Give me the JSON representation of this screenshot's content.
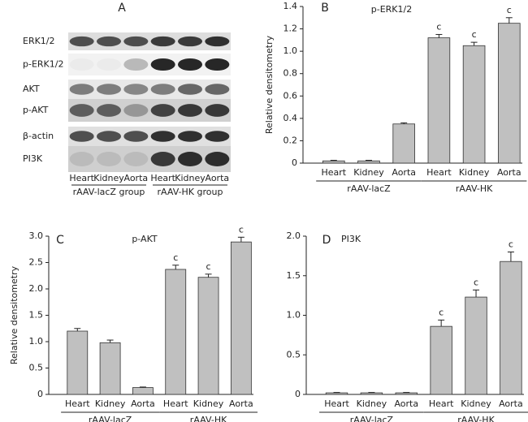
{
  "panel_a": {
    "panel": "A",
    "rows": [
      "ERK1/2",
      "p-ERK1/2",
      "AKT",
      "p-AKT",
      "β-actin",
      "PI3K"
    ],
    "lanes": [
      "Heart",
      "Kidney",
      "Aorta",
      "Heart",
      "Kidney",
      "Aorta"
    ],
    "groups": [
      "rAAV-lacZ group",
      "rAAV-HK group"
    ]
  },
  "chart_data": [
    {
      "type": "bar",
      "panel": "B",
      "title": "p-ERK1/2",
      "ylabel": "Relative densitometry",
      "color": "#c0c0c0",
      "categories": [
        "Heart",
        "Kidney",
        "Aorta",
        "Heart",
        "Kidney",
        "Aorta"
      ],
      "groups": [
        "rAAV-lacZ",
        "rAAV-HK"
      ],
      "values": [
        0.02,
        0.02,
        0.35,
        1.12,
        1.05,
        1.25
      ],
      "errors": [
        0.005,
        0.005,
        0.01,
        0.03,
        0.03,
        0.05
      ],
      "annotations": [
        null,
        null,
        null,
        "c",
        "c",
        "c"
      ],
      "ylim": [
        0,
        1.4
      ],
      "yticks": [
        0,
        0.2,
        0.4,
        0.6,
        0.8,
        {
          "value": 1,
          "label": "1.0"
        },
        1.2,
        1.4
      ]
    },
    {
      "type": "bar",
      "panel": "C",
      "title": "p-AKT",
      "ylabel": "Relative densitometry",
      "color": "#c0c0c0",
      "categories": [
        "Heart",
        "Kidney",
        "Aorta",
        "Heart",
        "Kidney",
        "Aorta"
      ],
      "groups": [
        "rAAV-lacZ",
        "rAAV-HK"
      ],
      "values": [
        1.2,
        0.98,
        0.13,
        2.37,
        2.22,
        2.89
      ],
      "errors": [
        0.05,
        0.05,
        0.01,
        0.08,
        0.06,
        0.09
      ],
      "annotations": [
        null,
        null,
        null,
        "c",
        "c",
        "c"
      ],
      "ylim": [
        0,
        3
      ],
      "yticks": [
        0,
        0.5,
        {
          "value": 1,
          "label": "1.0"
        },
        1.5,
        {
          "value": 2,
          "label": "2.0"
        },
        2.5,
        {
          "value": 3,
          "label": "3.0"
        }
      ]
    },
    {
      "type": "bar",
      "panel": "D",
      "title": "PI3K",
      "color": "#c0c0c0",
      "categories": [
        "Heart",
        "Kidney",
        "Aorta",
        "Heart",
        "Kidney",
        "Aorta"
      ],
      "groups": [
        "rAAV-lacZ",
        "rAAV-HK"
      ],
      "values": [
        0.02,
        0.02,
        0.02,
        0.86,
        1.23,
        1.68
      ],
      "errors": [
        0.005,
        0.005,
        0.005,
        0.08,
        0.09,
        0.12
      ],
      "annotations": [
        null,
        null,
        null,
        "c",
        "c",
        "c"
      ],
      "ylim": [
        0,
        2
      ],
      "yticks": [
        0,
        0.5,
        {
          "value": 1,
          "label": "1.0"
        },
        1.5,
        {
          "value": 2,
          "label": "2.0"
        }
      ]
    }
  ]
}
